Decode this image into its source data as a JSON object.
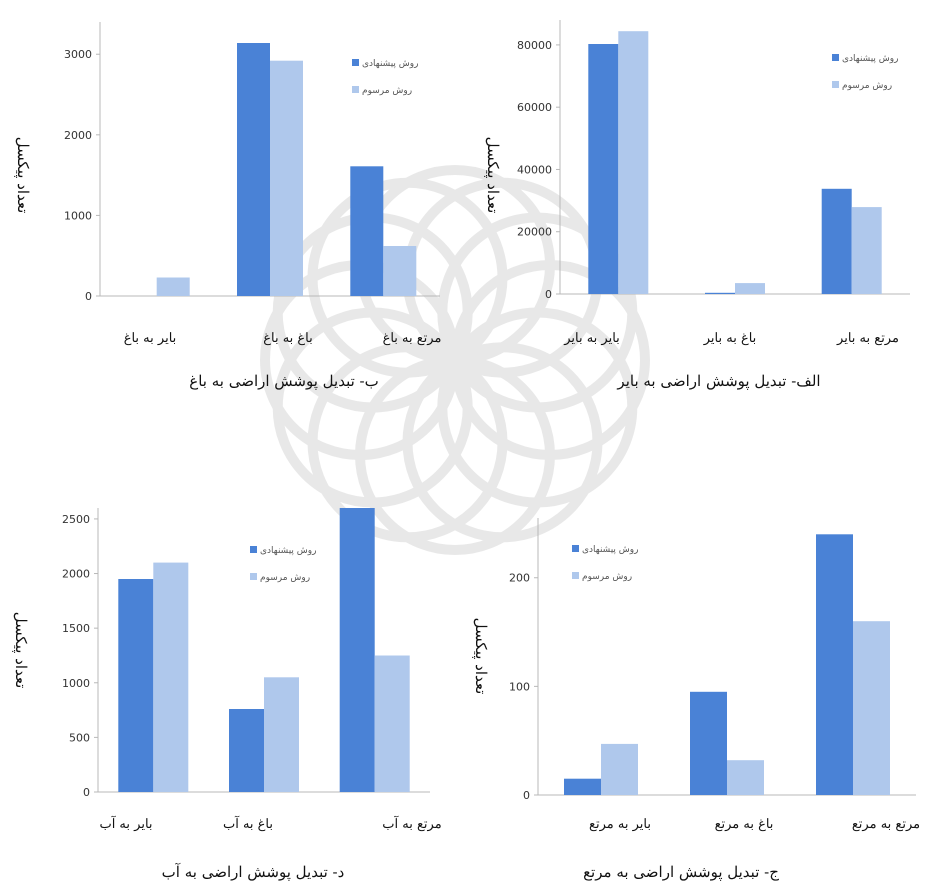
{
  "colors": {
    "proposed": "#4a82d6",
    "conventional": "#afc8ec"
  },
  "chart_data": [
    {
      "id": "a",
      "type": "bar",
      "caption": "الف- تبدیل پوشش اراضی به بایر",
      "ylabel": "تعداد پیکسل",
      "categories": [
        "بایر به بایر",
        "باغ به بایر",
        "مرتع به بایر"
      ],
      "series": [
        {
          "name": "روش پیشنهادی",
          "values": [
            80300,
            400,
            33800
          ]
        },
        {
          "name": "روش مرسوم",
          "values": [
            84400,
            3500,
            27900
          ]
        }
      ],
      "ylim": [
        0,
        88000
      ],
      "yticks": [
        0,
        20000,
        40000,
        60000,
        80000
      ],
      "legend": "top-right"
    },
    {
      "id": "b",
      "type": "bar",
      "caption": "ب- تبدیل پوشش اراضی به باغ",
      "ylabel": "تعداد پیکسل",
      "categories": [
        "بایر به باغ",
        "باغ به باغ",
        "مرتع به باغ"
      ],
      "series": [
        {
          "name": "روش پیشنهادی",
          "values": [
            0,
            3140,
            1610
          ]
        },
        {
          "name": "روش مرسوم",
          "values": [
            230,
            2920,
            620
          ]
        }
      ],
      "ylim": [
        0,
        3400
      ],
      "yticks": [
        0,
        1000,
        2000,
        3000
      ],
      "legend": "top-right"
    },
    {
      "id": "c",
      "type": "bar",
      "caption": "ج- تبدیل پوشش اراضی به مرتع",
      "ylabel": "تعداد پیکسل",
      "categories": [
        "بایر به مرتع",
        "باغ به مرتع",
        "مرتع به مرتع"
      ],
      "series": [
        {
          "name": "روش پیشنهادی",
          "values": [
            15,
            95,
            240
          ]
        },
        {
          "name": "روش مرسوم",
          "values": [
            47,
            32,
            160
          ]
        }
      ],
      "ylim": [
        0,
        255
      ],
      "yticks": [
        0,
        100,
        200
      ],
      "legend": "top-left"
    },
    {
      "id": "d",
      "type": "bar",
      "caption": "د- تبدیل پوشش اراضی به آب",
      "ylabel": "تعداد پیکسل",
      "categories": [
        "بایر به آب",
        "باغ به آب",
        "مرتع به آب"
      ],
      "series": [
        {
          "name": "روش پیشنهادی",
          "values": [
            1950,
            760,
            2600
          ]
        },
        {
          "name": "روش مرسوم",
          "values": [
            2100,
            1050,
            1250
          ]
        }
      ],
      "ylim": [
        0,
        2600
      ],
      "yticks": [
        0,
        500,
        1000,
        1500,
        2000,
        2500
      ],
      "legend": "top-right"
    }
  ]
}
